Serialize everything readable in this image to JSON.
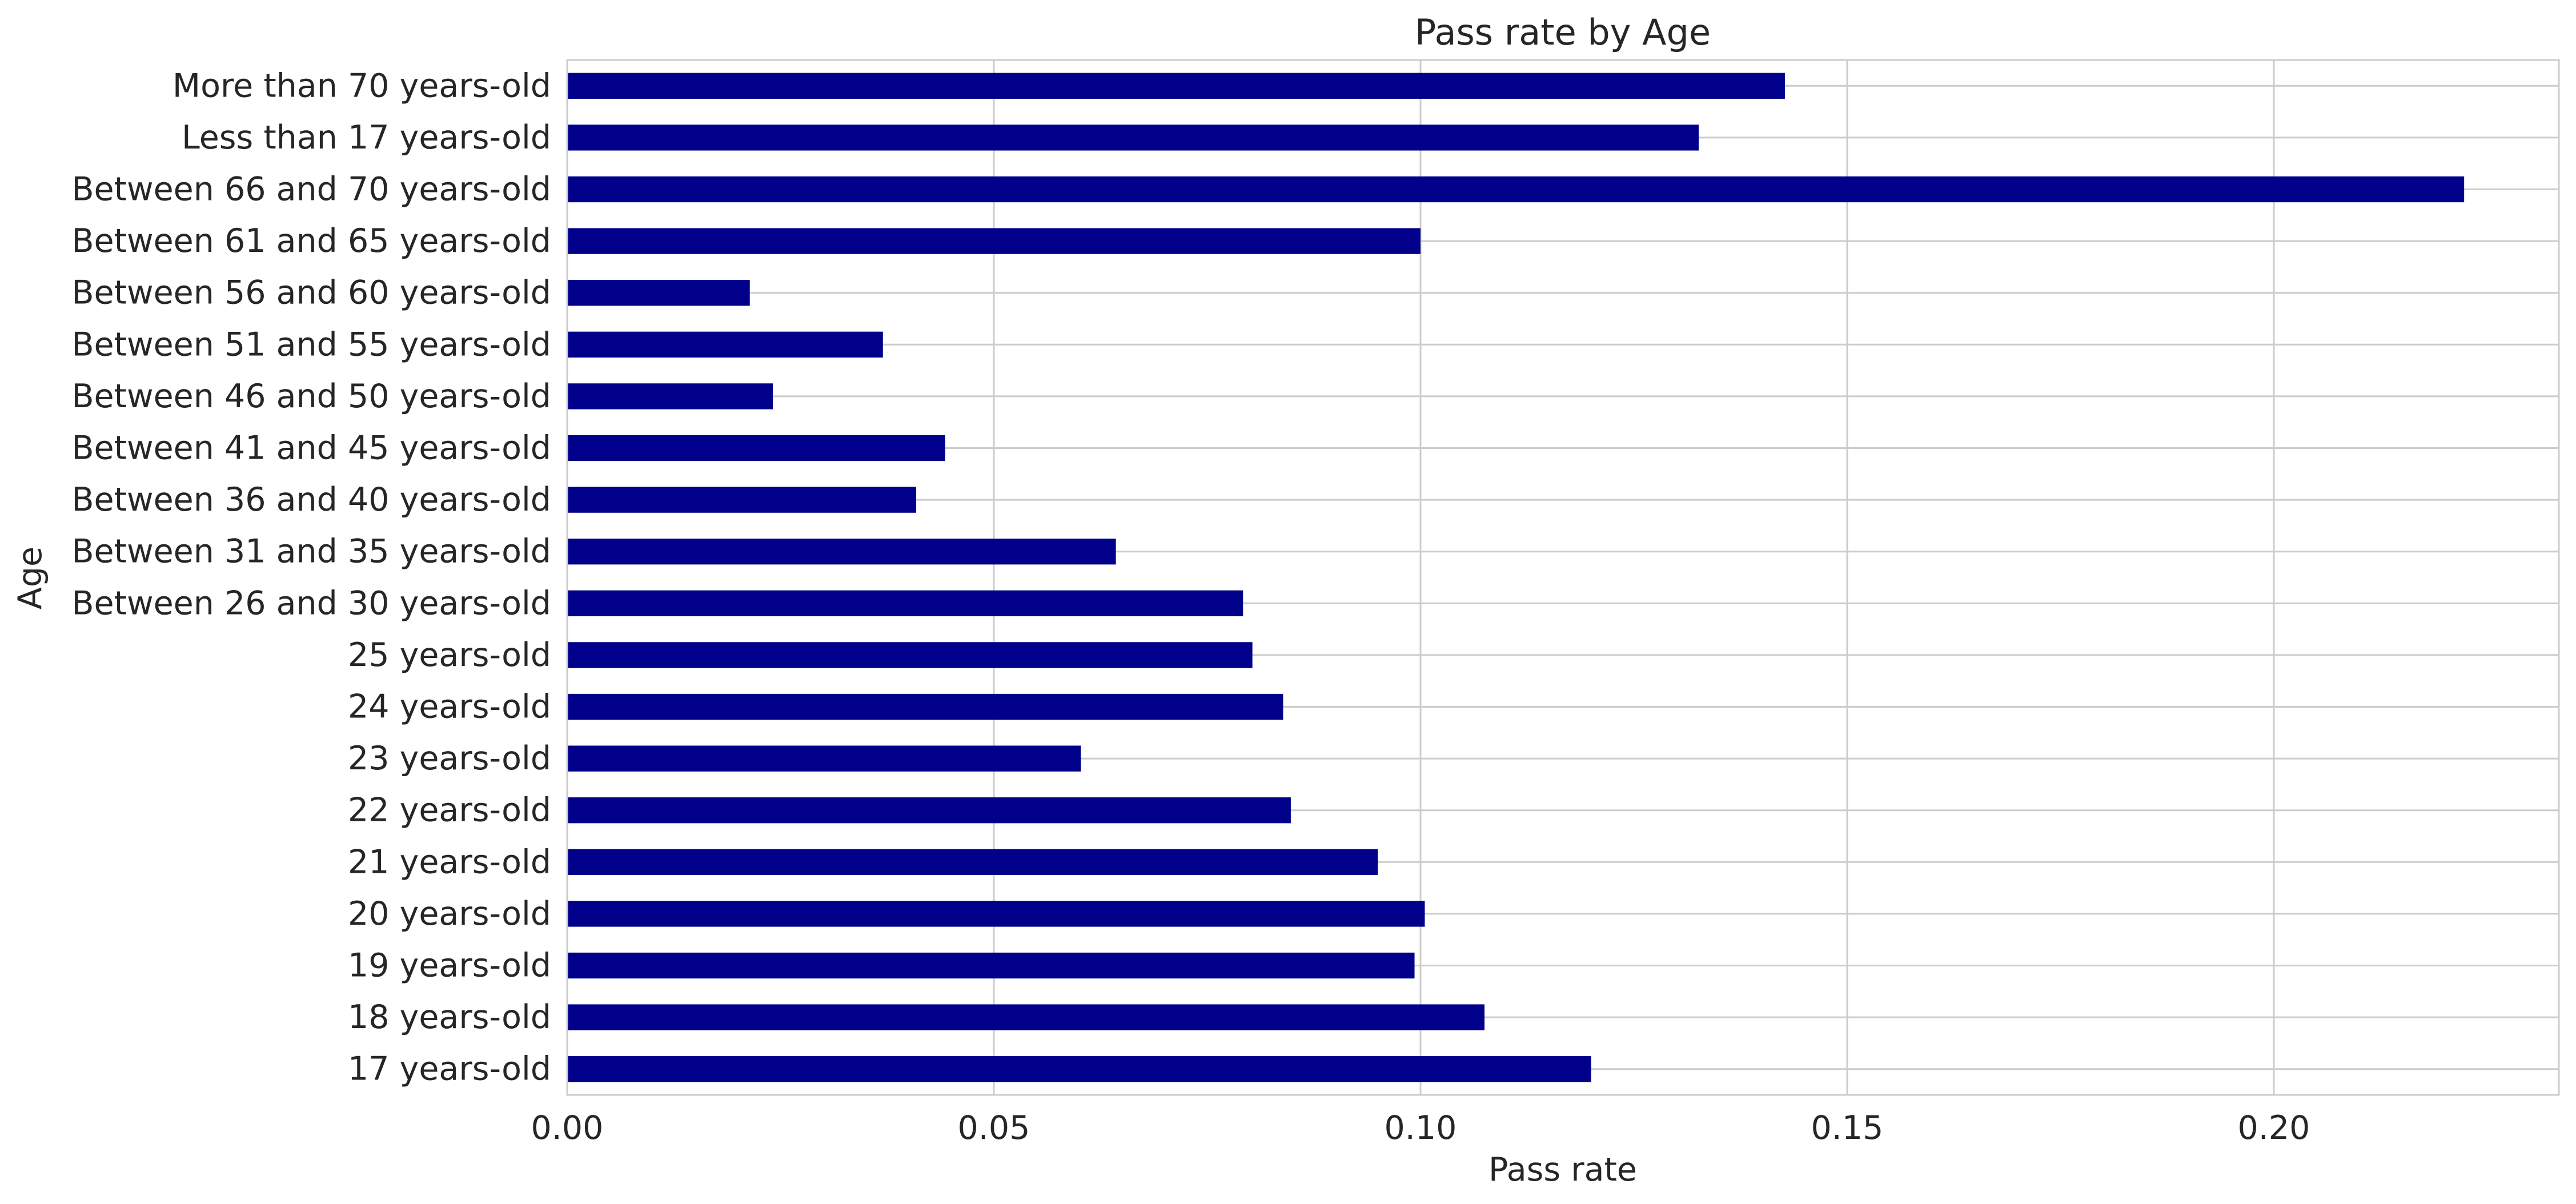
{
  "chart_data": {
    "type": "bar",
    "orientation": "horizontal",
    "title": "Pass rate by Age",
    "xlabel": "Pass rate",
    "ylabel": "Age",
    "xlim": [
      0,
      0.2334
    ],
    "xticks": [
      0.0,
      0.05,
      0.1,
      0.15,
      0.2
    ],
    "xtick_labels": [
      "0.00",
      "0.05",
      "0.10",
      "0.15",
      "0.20"
    ],
    "grid": true,
    "bar_color": "#00008b",
    "categories": [
      "17 years-old",
      "18 years-old",
      "19 years-old",
      "20 years-old",
      "21 years-old",
      "22 years-old",
      "23 years-old",
      "24 years-old",
      "25 years-old",
      "Between 26 and 30 years-old",
      "Between 31 and 35 years-old",
      "Between 36 and 40 years-old",
      "Between 41 and 45 years-old",
      "Between 46 and 50 years-old",
      "Between 51 and 55 years-old",
      "Between 56 and 60 years-old",
      "Between 61 and 65 years-old",
      "Between 66 and 70 years-old",
      "Less than 17 years-old",
      "More than 70 years-old"
    ],
    "values": [
      0.12,
      0.1075,
      0.0993,
      0.1005,
      0.095,
      0.0848,
      0.0602,
      0.0839,
      0.0803,
      0.0792,
      0.0643,
      0.0409,
      0.0443,
      0.0241,
      0.037,
      0.0214,
      0.1,
      0.2223,
      0.1326,
      0.1427
    ]
  }
}
